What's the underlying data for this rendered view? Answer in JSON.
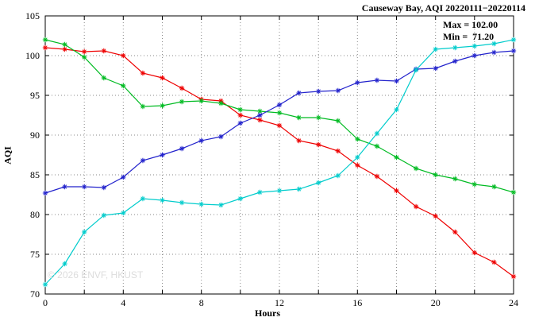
{
  "title": "Causeway Bay, AQI 20220111−20220114",
  "annotations": {
    "max": "Max = 102.00",
    "min": "Min =  71.20"
  },
  "watermark": "© 2026 ENVF, HKUST",
  "chart_data": {
    "type": "line",
    "title": "Causeway Bay, AQI 20220111−20220114",
    "xlabel": "Hours",
    "ylabel": "AQI",
    "xlim": [
      0,
      24
    ],
    "ylim": [
      70,
      105
    ],
    "xticks": [
      0,
      4,
      8,
      12,
      16,
      20,
      24
    ],
    "xgrid_step": 2,
    "yticks": [
      70,
      75,
      80,
      85,
      90,
      95,
      100,
      105
    ],
    "grid": true,
    "legend": "none",
    "marker": "asterisk",
    "x": [
      0,
      1,
      2,
      3,
      4,
      5,
      6,
      7,
      8,
      9,
      10,
      11,
      12,
      13,
      14,
      15,
      16,
      17,
      18,
      19,
      20,
      21,
      22,
      23,
      24
    ],
    "series": [
      {
        "name": "red",
        "color": "#ee0000",
        "values": [
          101.0,
          100.8,
          100.5,
          100.6,
          100.0,
          97.8,
          97.2,
          95.9,
          94.5,
          94.3,
          92.5,
          91.9,
          91.2,
          89.3,
          88.8,
          88.0,
          86.2,
          84.8,
          83.0,
          81.0,
          79.8,
          77.8,
          75.2,
          74.0,
          72.2
        ]
      },
      {
        "name": "green",
        "color": "#00bb22",
        "values": [
          102.0,
          101.4,
          99.8,
          97.2,
          96.2,
          93.6,
          93.7,
          94.2,
          94.3,
          94.0,
          93.2,
          93.0,
          92.8,
          92.2,
          92.2,
          91.8,
          89.5,
          88.6,
          87.2,
          85.8,
          85.0,
          84.5,
          83.8,
          83.5,
          82.8
        ]
      },
      {
        "name": "blue",
        "color": "#2222cc",
        "values": [
          82.7,
          83.5,
          83.5,
          83.4,
          84.7,
          86.8,
          87.5,
          88.3,
          89.3,
          89.8,
          91.5,
          92.5,
          93.8,
          95.3,
          95.5,
          95.6,
          96.6,
          96.9,
          96.8,
          98.3,
          98.4,
          99.3,
          100.0,
          100.4,
          100.6
        ]
      },
      {
        "name": "cyan",
        "color": "#00cccc",
        "values": [
          71.2,
          73.8,
          77.8,
          79.9,
          80.2,
          82.0,
          81.8,
          81.5,
          81.3,
          81.2,
          82.0,
          82.8,
          83.0,
          83.2,
          84.0,
          84.9,
          87.2,
          90.2,
          93.2,
          98.2,
          100.8,
          101.0,
          101.2,
          101.5,
          102.0
        ]
      }
    ],
    "max": 102.0,
    "min": 71.2
  }
}
